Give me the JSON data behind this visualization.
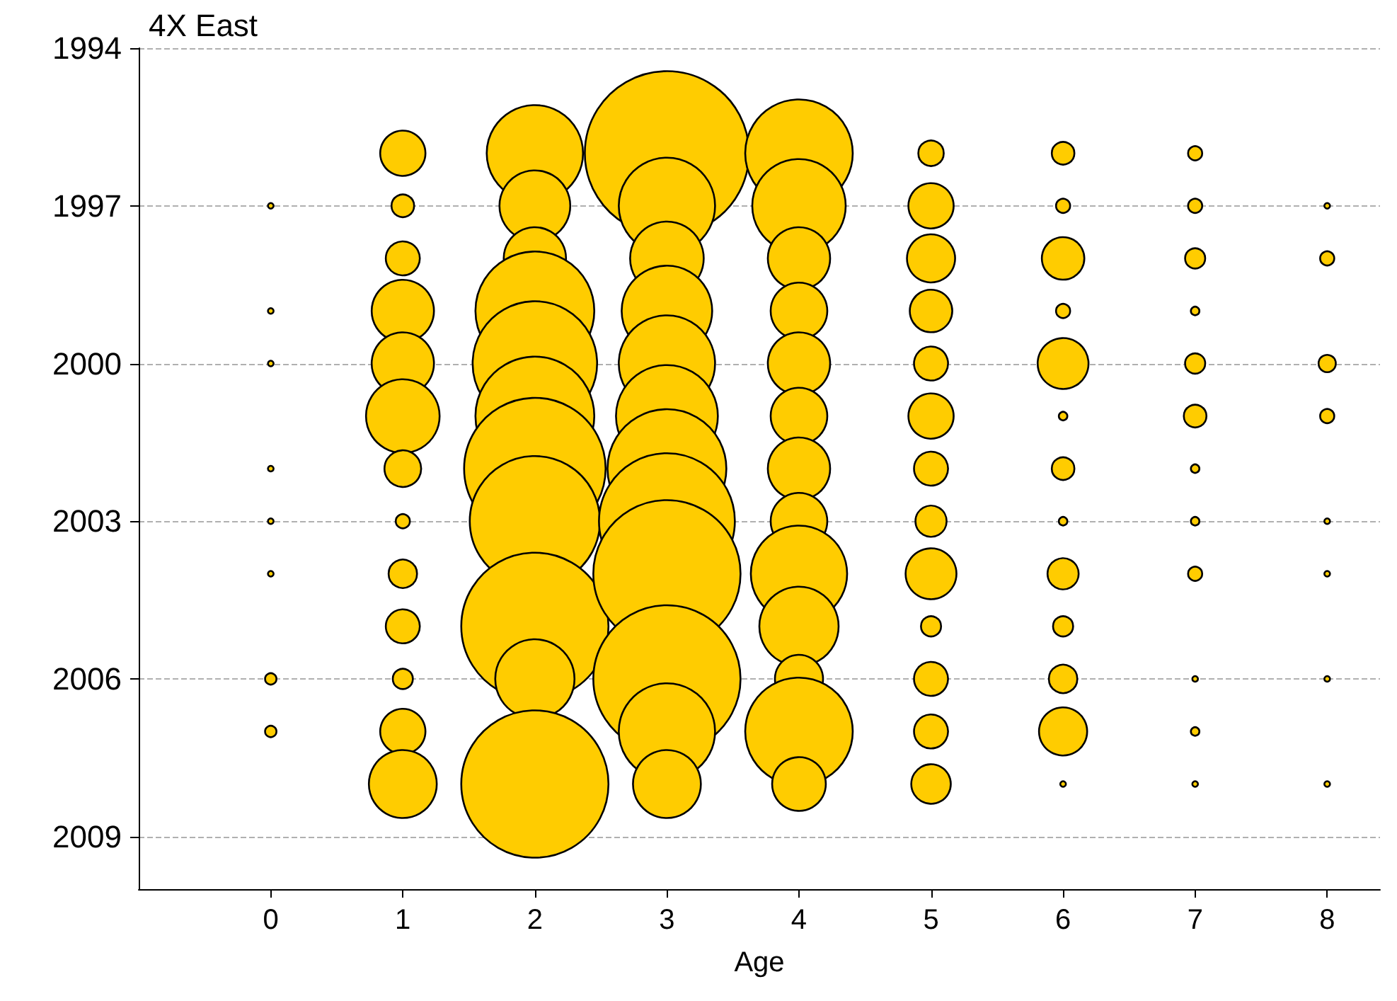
{
  "chart_data": {
    "type": "bubble",
    "title": "4X East",
    "xlabel": "Age",
    "xlim": [
      -1,
      8.4
    ],
    "xticks": [
      0,
      1,
      2,
      3,
      4,
      5,
      6,
      7,
      8
    ],
    "ylim": [
      2010,
      1994
    ],
    "yticks": [
      1994,
      1997,
      2000,
      2003,
      2006,
      2009
    ],
    "grid": "y",
    "series": [
      {
        "color": "#ffcc00",
        "x": [
          0,
          0,
          0,
          0,
          0,
          0,
          0,
          0,
          1,
          1,
          1,
          1,
          1,
          1,
          1,
          1,
          1,
          1,
          1,
          1,
          1,
          2,
          2,
          2,
          2,
          2,
          2,
          2,
          2,
          2,
          2,
          2,
          3,
          3,
          3,
          3,
          3,
          3,
          3,
          3,
          3,
          3,
          3,
          3,
          4,
          4,
          4,
          4,
          4,
          4,
          4,
          4,
          4,
          4,
          4,
          4,
          4,
          5,
          5,
          5,
          5,
          5,
          5,
          5,
          5,
          5,
          5,
          5,
          5,
          5,
          6,
          6,
          6,
          6,
          6,
          6,
          6,
          6,
          6,
          6,
          6,
          6,
          6,
          7,
          7,
          7,
          7,
          7,
          7,
          7,
          7,
          7,
          7,
          7,
          7,
          8,
          8,
          8,
          8,
          8,
          8,
          8,
          8
        ],
        "values": [
          1997,
          1999,
          2000,
          2002,
          2003,
          2004,
          2006,
          2007,
          1996,
          1997,
          1998,
          1999,
          2000,
          2001,
          2002,
          2003,
          2004,
          2005,
          2006,
          2007,
          2008,
          1996,
          1997,
          1998,
          1999,
          2000,
          2001,
          2002,
          2003,
          2005,
          2006,
          2008,
          1996,
          1997,
          1998,
          1999,
          2000,
          2001,
          2002,
          2003,
          2004,
          2006,
          2007,
          2008,
          1996,
          1997,
          1998,
          1999,
          2000,
          2001,
          2002,
          2003,
          2004,
          2005,
          2006,
          2007,
          2008,
          1996,
          1997,
          1998,
          1999,
          2000,
          2001,
          2002,
          2003,
          2004,
          2005,
          2006,
          2007,
          2008,
          1996,
          1997,
          1998,
          1999,
          2000,
          2001,
          2002,
          2003,
          2004,
          2005,
          2006,
          2007,
          2008,
          1996,
          1997,
          1998,
          1999,
          2000,
          2001,
          2002,
          2003,
          2004,
          2006,
          2007,
          2008,
          1997,
          1998,
          2000,
          2001,
          2003,
          2004,
          2006,
          2008
        ],
        "sizes": [
          0.0012,
          0.0012,
          0.0012,
          0.0012,
          0.0012,
          0.0012,
          0.0048,
          0.0048,
          0.076,
          0.019,
          0.043,
          0.144,
          0.144,
          0.201,
          0.05,
          0.0074,
          0.03,
          0.043,
          0.015,
          0.076,
          0.171,
          0.344,
          0.186,
          0.144,
          0.524,
          0.575,
          0.524,
          0.743,
          0.629,
          0.804,
          0.233,
          0.804,
          1,
          0.344,
          0.201,
          0.304,
          0.344,
          0.385,
          0.524,
          0.685,
          0.804,
          0.804,
          0.344,
          0.171,
          0.429,
          0.324,
          0.144,
          0.119,
          0.144,
          0.119,
          0.144,
          0.119,
          0.344,
          0.233,
          0.086,
          0.429,
          0.107,
          0.024,
          0.076,
          0.086,
          0.067,
          0.043,
          0.076,
          0.043,
          0.036,
          0.096,
          0.015,
          0.043,
          0.043,
          0.058,
          0.019,
          0.0074,
          0.067,
          0.0074,
          0.096,
          0.0027,
          0.019,
          0.0027,
          0.036,
          0.015,
          0.03,
          0.086,
          0.0012,
          0.0074,
          0.0074,
          0.015,
          0.0027,
          0.015,
          0.019,
          0.0027,
          0.0027,
          0.0074,
          0.0012,
          0.0027,
          0.0012,
          0.0012,
          0.0074,
          0.011,
          0.0074,
          0.0012,
          0.0012,
          0.0012,
          0.0012
        ]
      }
    ]
  }
}
